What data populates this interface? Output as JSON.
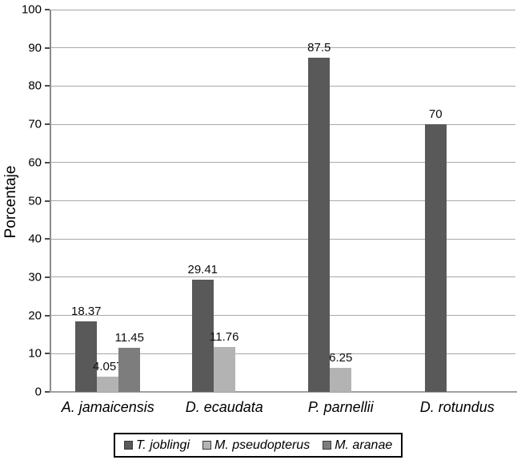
{
  "figure": {
    "background": "#ffffff"
  },
  "chart_data": {
    "type": "bar",
    "title": "",
    "xlabel": "",
    "ylabel": "Porcentaje",
    "ylim": [
      0,
      100
    ],
    "ytick_step": 10,
    "ytick_labels": [
      "0",
      "10",
      "20",
      "30",
      "40",
      "50",
      "60",
      "70",
      "80",
      "90",
      "100"
    ],
    "grid": true,
    "legend_position": "bottom",
    "grid_color": "#a8a8a8",
    "axis_color": "#8c8c8c",
    "categories": [
      "A. jamaicensis",
      "D. ecaudata",
      "P. parnellii",
      "D. rotundus"
    ],
    "series": [
      {
        "name": "T. joblingi",
        "color": "#595959",
        "values": [
          18.37,
          29.41,
          87.5,
          70
        ],
        "labels": [
          "18.37",
          "29.41",
          "87.5",
          "70"
        ]
      },
      {
        "name": "M. pseudopterus",
        "color": "#b3b3b3",
        "values": [
          4.057,
          11.76,
          6.25,
          0
        ],
        "labels": [
          "4.057",
          "11.76",
          "6.25",
          ""
        ]
      },
      {
        "name": "M. aranae",
        "color": "#7d7d7d",
        "values": [
          11.45,
          0,
          0,
          0
        ],
        "labels": [
          "11.45",
          "",
          "",
          ""
        ]
      }
    ]
  }
}
